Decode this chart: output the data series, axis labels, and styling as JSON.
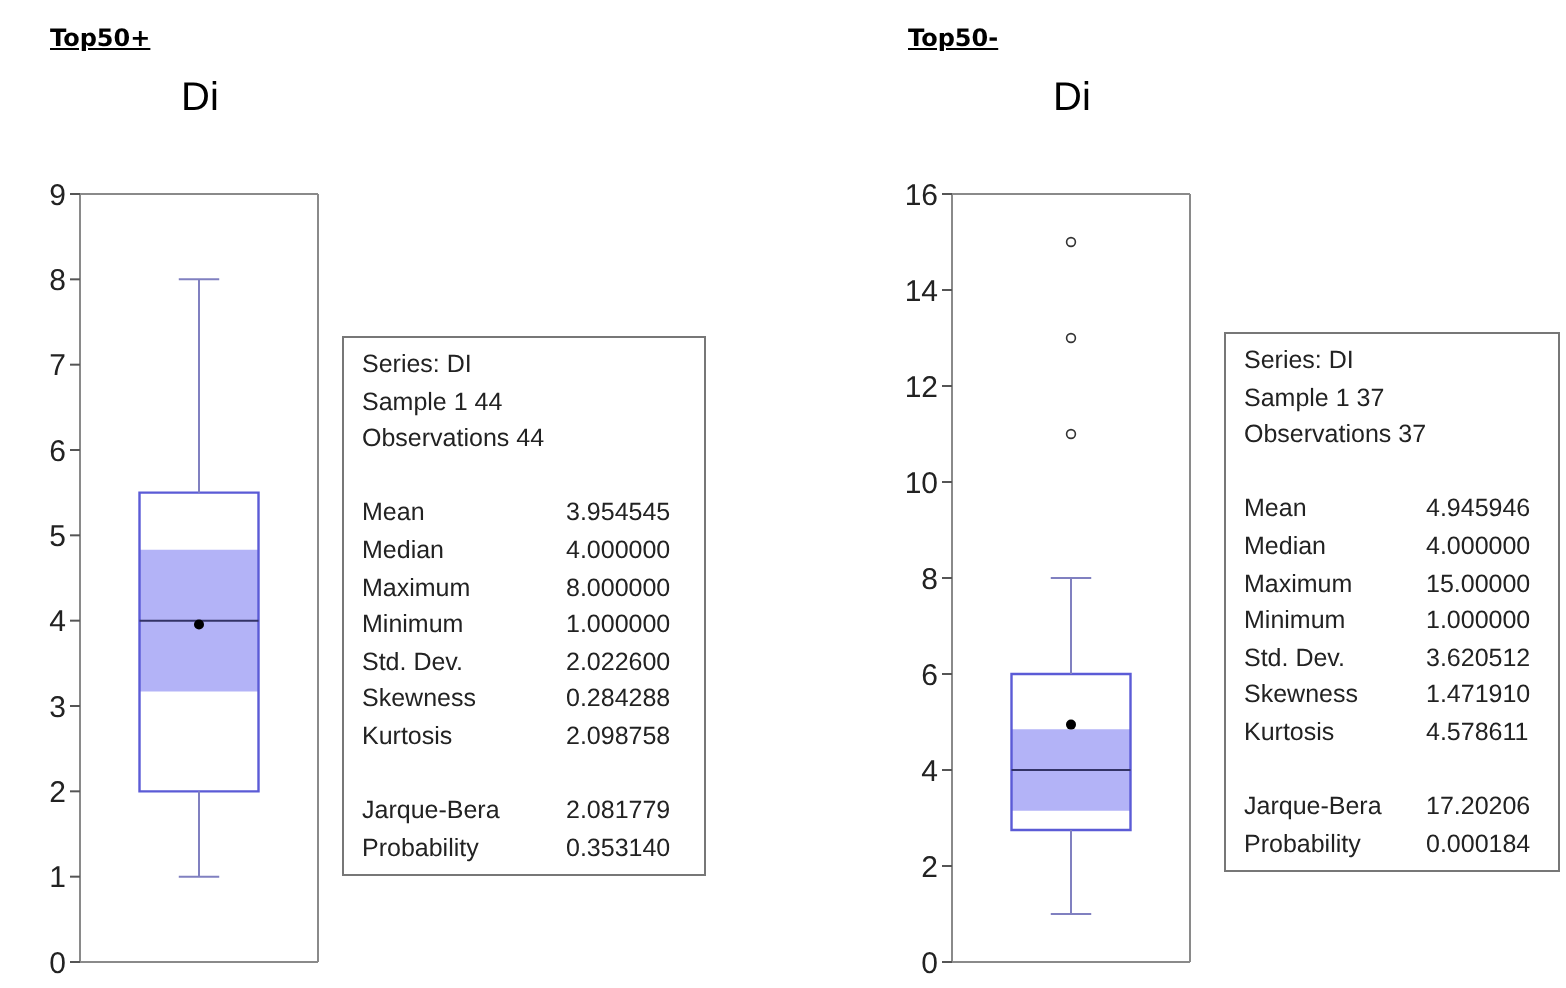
{
  "chart_data": [
    {
      "type": "box",
      "title": "Top50+",
      "subtitle": "Di",
      "categories": [
        null
      ],
      "color": "#5b5bd6",
      "boxes": [
        {
          "low": 1,
          "q1": 2,
          "median": 4,
          "q3": 5.5,
          "high": 8,
          "mean": 3.954545
        }
      ],
      "bands": [
        {
          "axis": "y",
          "from": 3.17,
          "to": 4.83,
          "color": "#b3b3f7"
        }
      ],
      "ylim": [
        0,
        9
      ],
      "yticks": [
        0,
        1,
        2,
        3,
        4,
        5,
        6,
        7,
        8,
        9
      ],
      "tick_labels": "y"
    },
    {
      "type": "other",
      "annotations": [
        "Series: DI",
        "Sample 1 44",
        "Observations 44",
        "Mean",
        "3.954545",
        "Median",
        "4.000000",
        "Maximum",
        "8.000000",
        "Minimum",
        "1.000000",
        "Std. Dev.",
        "2.022600",
        "Skewness",
        "0.284288",
        "Kurtosis",
        "2.098758",
        "Jarque-Bera",
        "2.081779",
        "Probability",
        "0.353140"
      ]
    },
    {
      "type": "box",
      "title": "Top50-",
      "subtitle": "Di",
      "categories": [
        null
      ],
      "color": "#5b5bd6",
      "boxes": [
        {
          "low": 1,
          "q1": 2.75,
          "median": 4,
          "q3": 6,
          "high": 8,
          "mean": 4.945946,
          "outliers": [
            11,
            13,
            15
          ]
        }
      ],
      "bands": [
        {
          "axis": "y",
          "from": 3.15,
          "to": 4.85,
          "color": "#b3b3f7"
        }
      ],
      "ylim": [
        0,
        16
      ],
      "yticks": [
        0,
        2,
        4,
        6,
        8,
        10,
        12,
        14,
        16
      ],
      "tick_labels": "y"
    },
    {
      "type": "other",
      "annotations": [
        "Series: DI",
        "Sample 1 37",
        "Observations 37",
        "Mean",
        "4.945946",
        "Median",
        "4.000000",
        "Maximum",
        "15.00000",
        "Minimum",
        "1.000000",
        "Std. Dev.",
        "3.620512",
        "Skewness",
        "1.471910",
        "Kurtosis",
        "4.578611",
        "Jarque-Bera",
        "17.20206",
        "Probability",
        "0.000184"
      ]
    }
  ]
}
